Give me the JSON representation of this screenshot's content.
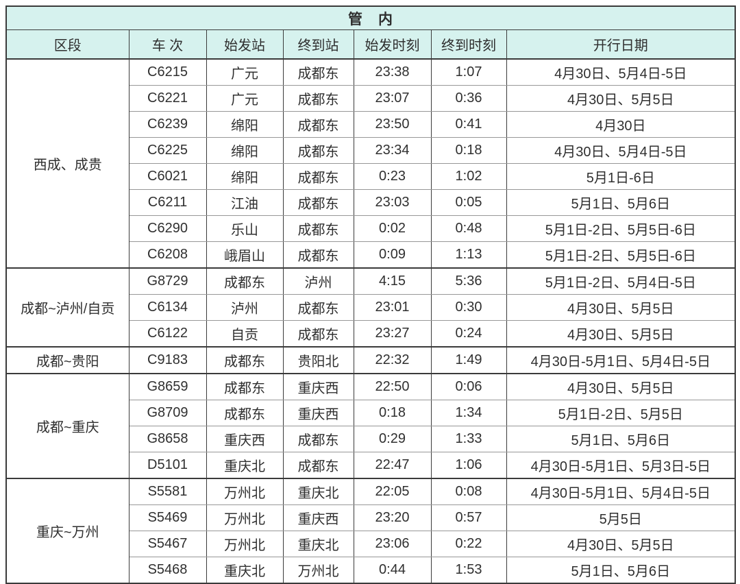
{
  "colors": {
    "header_bg": "#d6f2ee",
    "border_dark": "#3a3a3a",
    "border_light": "#979797",
    "text": "#2f2f2f"
  },
  "table": {
    "title": "管　内",
    "columns": [
      "区段",
      "车 次",
      "始发站",
      "终到站",
      "始发时刻",
      "终到时刻",
      "开行日期"
    ],
    "groups": [
      {
        "label": "西成、成贵",
        "rowspan": 8
      },
      {
        "label": "成都~泸州/自贡",
        "rowspan": 3
      },
      {
        "label": "成都~贵阳",
        "rowspan": 1
      },
      {
        "label": "成都~重庆",
        "rowspan": 4
      },
      {
        "label": "重庆~万州",
        "rowspan": 4
      }
    ],
    "rows": [
      {
        "train": "C6215",
        "from": "广元",
        "to": "成都东",
        "dep": "23:38",
        "arr": "1:07",
        "dates": "4月30日、5月4日-5日"
      },
      {
        "train": "C6221",
        "from": "广元",
        "to": "成都东",
        "dep": "23:07",
        "arr": "0:36",
        "dates": "4月30日、5月5日"
      },
      {
        "train": "C6239",
        "from": "绵阳",
        "to": "成都东",
        "dep": "23:50",
        "arr": "0:41",
        "dates": "4月30日"
      },
      {
        "train": "C6225",
        "from": "绵阳",
        "to": "成都东",
        "dep": "23:34",
        "arr": "0:18",
        "dates": "4月30日、5月4日-5日"
      },
      {
        "train": "C6021",
        "from": "绵阳",
        "to": "成都东",
        "dep": "0:23",
        "arr": "1:02",
        "dates": "5月1日-6日"
      },
      {
        "train": "C6211",
        "from": "江油",
        "to": "成都东",
        "dep": "23:03",
        "arr": "0:05",
        "dates": "5月1日、5月6日"
      },
      {
        "train": "C6290",
        "from": "乐山",
        "to": "成都东",
        "dep": "0:02",
        "arr": "0:48",
        "dates": "5月1日-2日、5月5日-6日"
      },
      {
        "train": "C6208",
        "from": "峨眉山",
        "to": "成都东",
        "dep": "0:09",
        "arr": "1:13",
        "dates": "5月1日-2日、5月5日-6日"
      },
      {
        "train": "G8729",
        "from": "成都东",
        "to": "泸州",
        "dep": "4:15",
        "arr": "5:36",
        "dates": "5月1日-2日、5月4日-5日"
      },
      {
        "train": "C6134",
        "from": "泸州",
        "to": "成都东",
        "dep": "23:01",
        "arr": "0:30",
        "dates": "4月30日、5月5日"
      },
      {
        "train": "C6122",
        "from": "自贡",
        "to": "成都东",
        "dep": "23:27",
        "arr": "0:24",
        "dates": "4月30日、5月5日"
      },
      {
        "train": "C9183",
        "from": "成都东",
        "to": "贵阳北",
        "dep": "22:32",
        "arr": "1:49",
        "dates": "4月30日-5月1日、5月4日-5日"
      },
      {
        "train": "G8659",
        "from": "成都东",
        "to": "重庆西",
        "dep": "22:50",
        "arr": "0:06",
        "dates": "4月30日、5月5日"
      },
      {
        "train": "G8709",
        "from": "成都东",
        "to": "重庆西",
        "dep": "0:18",
        "arr": "1:34",
        "dates": "5月1日-2日、5月5日"
      },
      {
        "train": "G8658",
        "from": "重庆西",
        "to": "成都东",
        "dep": "0:29",
        "arr": "1:33",
        "dates": "5月1日、5月6日"
      },
      {
        "train": "D5101",
        "from": "重庆北",
        "to": "成都东",
        "dep": "22:47",
        "arr": "1:06",
        "dates": "4月30日-5月1日、5月3日-5日"
      },
      {
        "train": "S5581",
        "from": "万州北",
        "to": "重庆北",
        "dep": "22:05",
        "arr": "0:08",
        "dates": "4月30日-5月1日、5月4日-5日"
      },
      {
        "train": "S5469",
        "from": "万州北",
        "to": "重庆西",
        "dep": "23:20",
        "arr": "0:57",
        "dates": "5月5日"
      },
      {
        "train": "S5467",
        "from": "万州北",
        "to": "重庆北",
        "dep": "23:06",
        "arr": "0:22",
        "dates": "4月30日、5月5日"
      },
      {
        "train": "S5468",
        "from": "重庆北",
        "to": "万州北",
        "dep": "0:44",
        "arr": "1:53",
        "dates": "5月1日、5月6日"
      }
    ]
  }
}
